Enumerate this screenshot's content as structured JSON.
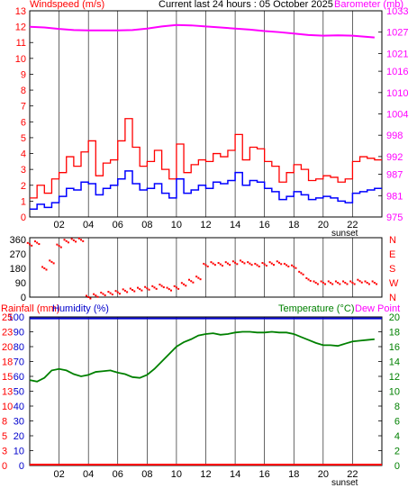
{
  "header": {
    "left": "Windspeed (m/s)",
    "center": "Current last 24 hours : 05 October 2025",
    "right": "Barometer (mb)"
  },
  "panel3_header": {
    "rainfall": "Rainfall (mm)",
    "humidity": "Humidity (%)",
    "temperature": "Temperature (°C)",
    "dewpoint": "Dew Point"
  },
  "sunset_label": "sunset",
  "x_tick_labels": [
    "02",
    "04",
    "06",
    "08",
    "10",
    "12",
    "14",
    "16",
    "18",
    "20",
    "22"
  ],
  "colors": {
    "wind_label": "#ff0000",
    "barometer": "#ff00ff",
    "wind_gust": "#ff0000",
    "wind_avg": "#0000ff",
    "direction": "#ff0000",
    "compass": "#ff0000",
    "rain": "#ff0000",
    "humidity": "#0000cc",
    "temperature": "#008000",
    "frame": "#000000"
  },
  "chart_data": [
    {
      "type": "line",
      "name": "wind-barometer",
      "x_unit": "hour",
      "xlim": [
        0,
        24
      ],
      "y_left": {
        "label": "Windspeed (m/s)",
        "ticks": [
          0,
          1,
          2,
          3,
          4,
          5,
          6,
          7,
          8,
          9,
          10,
          11,
          12,
          13
        ],
        "lim": [
          0,
          13
        ]
      },
      "y_right": {
        "label": "Barometer (mb)",
        "ticks": [
          975,
          981,
          987,
          992,
          998,
          1004,
          1010,
          1016,
          1021,
          1027,
          1033
        ],
        "lim": [
          975,
          1033
        ]
      },
      "series": [
        {
          "role": "barometer",
          "axis": "right",
          "x": [
            0,
            1,
            2,
            3,
            4,
            5,
            6,
            7,
            8,
            9,
            10,
            11,
            12,
            13,
            14,
            15,
            16,
            17,
            18,
            19,
            20,
            21,
            22,
            23.5
          ],
          "values": [
            1028.5,
            1028.3,
            1027.9,
            1027.6,
            1027.5,
            1027.5,
            1027.5,
            1027.6,
            1028.0,
            1028.6,
            1029.0,
            1028.9,
            1028.6,
            1028.3,
            1028.0,
            1027.7,
            1027.3,
            1027.0,
            1026.6,
            1026.2,
            1026.0,
            1026.1,
            1026.0,
            1025.5
          ]
        },
        {
          "role": "gust",
          "axis": "left",
          "x": [
            0,
            0.5,
            1,
            1.5,
            2,
            2.5,
            3,
            3.5,
            4,
            4.5,
            5,
            5.5,
            6,
            6.5,
            7,
            7.5,
            8,
            8.5,
            9,
            9.5,
            10,
            10.5,
            11,
            11.5,
            12,
            12.5,
            13,
            13.5,
            14,
            14.5,
            15,
            15.5,
            16,
            16.5,
            17,
            17.5,
            18,
            18.5,
            19,
            19.5,
            20,
            20.5,
            21,
            21.5,
            22,
            22.5,
            23,
            23.5
          ],
          "values": [
            1.2,
            2,
            1.5,
            2.4,
            2.8,
            3.8,
            3.2,
            4.1,
            4.8,
            2.6,
            3.4,
            3.6,
            4.8,
            6.2,
            4.4,
            3.2,
            3.5,
            4.2,
            3.0,
            2.4,
            4.6,
            2.8,
            3.3,
            3.6,
            3.5,
            4.0,
            3.8,
            4.2,
            5.2,
            3.6,
            4.4,
            4.3,
            3.5,
            3.2,
            2.2,
            2.8,
            3.3,
            3.0,
            2.3,
            2.4,
            2.6,
            2.5,
            2.2,
            2.4,
            3.5,
            3.8,
            3.7,
            3.6
          ]
        },
        {
          "role": "average",
          "axis": "left",
          "x": [
            0,
            0.5,
            1,
            1.5,
            2,
            2.5,
            3,
            3.5,
            4,
            4.5,
            5,
            5.5,
            6,
            6.5,
            7,
            7.5,
            8,
            8.5,
            9,
            9.5,
            10,
            10.5,
            11,
            11.5,
            12,
            12.5,
            13,
            13.5,
            14,
            14.5,
            15,
            15.5,
            16,
            16.5,
            17,
            17.5,
            18,
            18.5,
            19,
            19.5,
            20,
            20.5,
            21,
            21.5,
            22,
            22.5,
            23,
            23.5
          ],
          "values": [
            0.5,
            0.8,
            0.6,
            0.9,
            1.3,
            1.8,
            1.7,
            2.2,
            2.1,
            1.4,
            1.8,
            2.0,
            2.4,
            2.9,
            2.1,
            1.7,
            1.8,
            2.1,
            1.5,
            1.2,
            2.4,
            1.5,
            1.7,
            2.0,
            1.8,
            2.2,
            2.1,
            2.3,
            2.8,
            2.0,
            2.3,
            2.2,
            1.8,
            1.6,
            1.1,
            1.3,
            1.6,
            1.4,
            1.1,
            1.2,
            1.3,
            1.2,
            1.0,
            0.9,
            1.5,
            1.6,
            1.7,
            1.8
          ]
        }
      ]
    },
    {
      "type": "scatter",
      "name": "wind-direction",
      "x_unit": "hour",
      "xlim": [
        0,
        24
      ],
      "y_ticks": [
        0,
        90,
        180,
        270,
        360
      ],
      "y_lim": [
        0,
        360
      ],
      "compass_labels": [
        "N",
        "W",
        "S",
        "E",
        "N"
      ],
      "x": [
        0,
        0.5,
        1,
        1.5,
        2,
        2.5,
        3,
        3.5,
        4,
        4.5,
        5,
        5.5,
        6,
        6.5,
        7,
        7.5,
        8,
        8.5,
        9,
        9.5,
        10,
        10.5,
        11,
        11.5,
        12,
        12.5,
        13,
        13.5,
        14,
        14.5,
        15,
        15.5,
        16,
        16.5,
        17,
        17.5,
        18,
        18.5,
        19,
        19.5,
        20,
        20.5,
        21,
        21.5,
        22,
        22.5,
        23,
        23.5
      ],
      "values": [
        330,
        340,
        180,
        220,
        320,
        350,
        355,
        358,
        0,
        10,
        20,
        25,
        30,
        40,
        45,
        50,
        55,
        60,
        70,
        50,
        60,
        80,
        100,
        120,
        200,
        210,
        205,
        210,
        215,
        220,
        210,
        200,
        205,
        210,
        215,
        200,
        190,
        150,
        110,
        90,
        90,
        90,
        90,
        90,
        90,
        100,
        90,
        90
      ]
    },
    {
      "type": "line",
      "name": "rain-humidity-temperature",
      "x_unit": "hour",
      "xlim": [
        0,
        24
      ],
      "y_left_rain": {
        "ticks": [
          0,
          3,
          5,
          8,
          10,
          13,
          15,
          18,
          20,
          23,
          25
        ],
        "lim": [
          0,
          25
        ]
      },
      "y_left_humidity": {
        "ticks": [
          0,
          10,
          20,
          30,
          40,
          50,
          60,
          70,
          80,
          90,
          100
        ],
        "lim": [
          0,
          100
        ]
      },
      "y_right_temperature": {
        "ticks": [
          0,
          2,
          4,
          6,
          8,
          10,
          12,
          14,
          16,
          18,
          20
        ],
        "lim": [
          0,
          20
        ]
      },
      "series": [
        {
          "role": "rainfall",
          "axis": "rain",
          "x": [
            0,
            24
          ],
          "values": [
            0,
            0
          ]
        },
        {
          "role": "humidity",
          "axis": "humidity",
          "x": [
            0,
            24
          ],
          "values": [
            99,
            99
          ]
        },
        {
          "role": "temperature",
          "axis": "temperature",
          "x": [
            0,
            0.5,
            1,
            1.5,
            2,
            2.5,
            3,
            3.5,
            4,
            4.5,
            5,
            5.5,
            6,
            6.5,
            7,
            7.5,
            8,
            8.5,
            9,
            9.5,
            10,
            10.5,
            11,
            11.5,
            12,
            12.5,
            13,
            13.5,
            14,
            14.5,
            15,
            15.5,
            16,
            16.5,
            17,
            17.5,
            18,
            18.5,
            19,
            19.5,
            20,
            20.5,
            21,
            21.5,
            22,
            22.5,
            23,
            23.5
          ],
          "values": [
            11.5,
            11.3,
            11.8,
            12.8,
            13.0,
            12.8,
            12.3,
            12.0,
            12.2,
            12.6,
            12.7,
            12.8,
            12.5,
            12.3,
            11.9,
            11.8,
            12.2,
            13.0,
            14.0,
            15.0,
            16.0,
            16.6,
            17.0,
            17.5,
            17.7,
            17.8,
            17.6,
            17.7,
            17.9,
            18.0,
            18.0,
            17.9,
            17.9,
            18.0,
            17.9,
            17.9,
            17.7,
            17.3,
            16.9,
            16.5,
            16.2,
            16.2,
            16.1,
            16.4,
            16.7,
            16.8,
            16.9,
            17.0
          ]
        }
      ]
    }
  ]
}
